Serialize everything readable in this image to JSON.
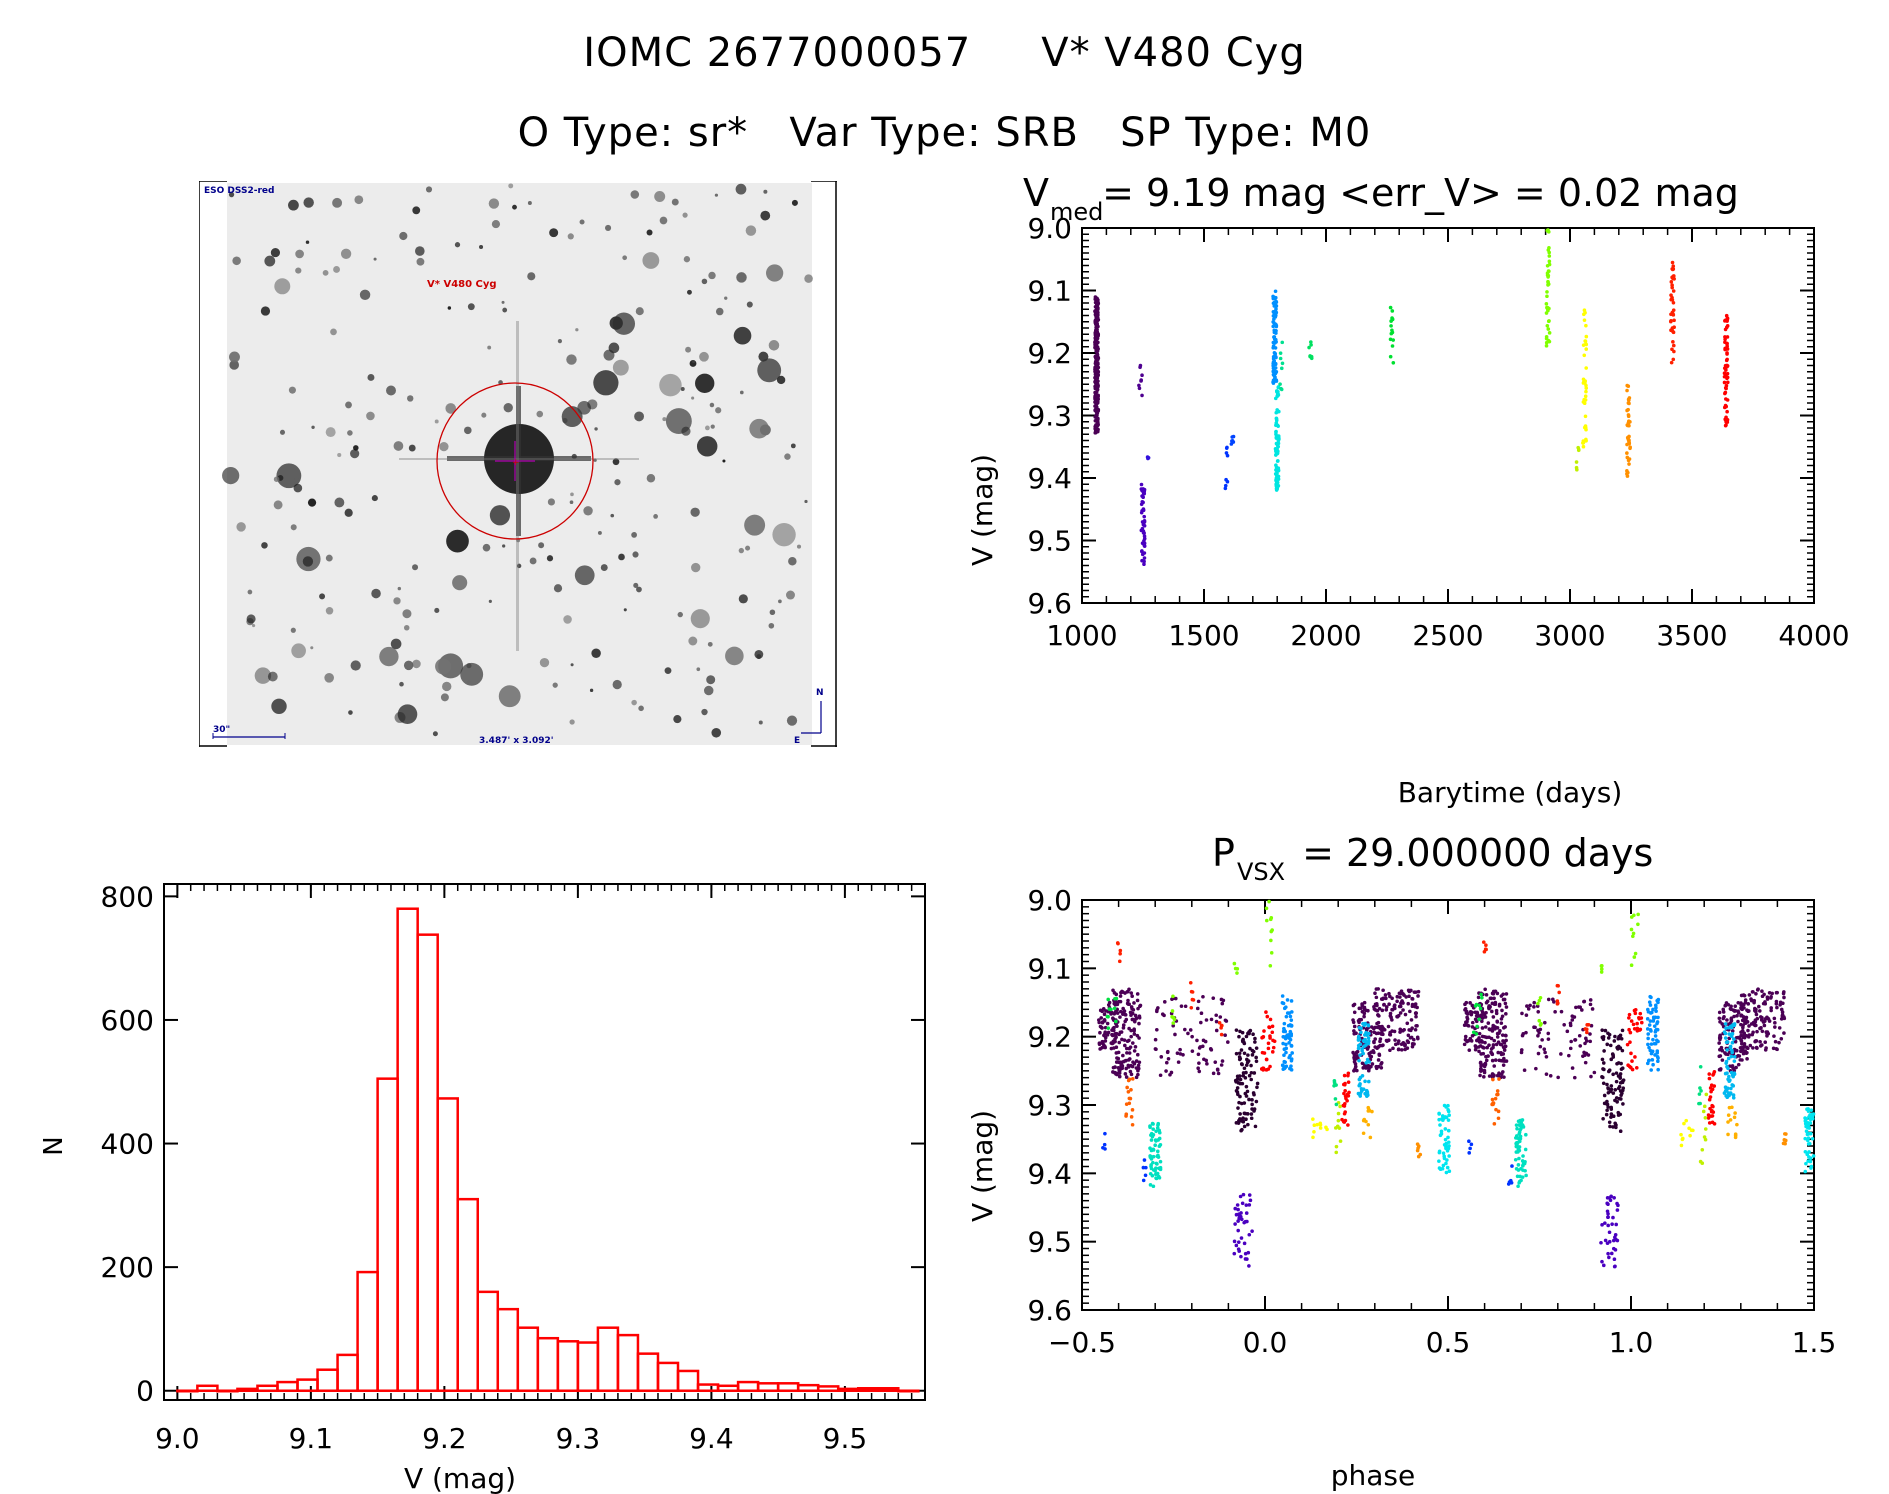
{
  "header": {
    "object_id": "IOMC 2677000057",
    "star_name": "V* V480 Cyg",
    "o_type": "O Type: sr*",
    "var_type": "Var Type: SRB",
    "sp_type": "SP Type: M0"
  },
  "finder_chart": {
    "survey_label": "ESO DSS2-red",
    "target_label": "V* V480 Cyg",
    "scale_label": "30\"",
    "fov_label": "3.487' x 3.092'",
    "north_label": "N",
    "east_label": "E",
    "colors": {
      "circle": "#cc0000",
      "crosshair": "#b000b0",
      "annotation": "#00008b",
      "target": "#cc0000"
    }
  },
  "chart_data": [
    {
      "id": "light_curve",
      "type": "scatter",
      "title_main": "V",
      "title_sub": "med",
      "title_rest": " = 9.19 mag <err_V> = 0.02 mag",
      "xlabel": "Barytime (days)",
      "ylabel": "V (mag)",
      "xlim": [
        1000,
        4000
      ],
      "ylim": [
        9.6,
        9.0
      ],
      "y_inverted": true,
      "xticks": [
        1000,
        1500,
        2000,
        2500,
        3000,
        3500,
        4000
      ],
      "xtick_labels": [
        "1000",
        "1500",
        "2000",
        "2500",
        "3000",
        "3500",
        "4000"
      ],
      "yticks": [
        9.0,
        9.1,
        9.2,
        9.3,
        9.4,
        9.5,
        9.6
      ],
      "ytick_labels": [
        "9.0",
        "9.1",
        "9.2",
        "9.3",
        "9.4",
        "9.5",
        "9.6"
      ],
      "segments": [
        {
          "x": 1060,
          "ymin": 9.11,
          "ymax": 9.33,
          "n": 260,
          "color": "#4b0055"
        },
        {
          "x": 1240,
          "ymin": 9.22,
          "ymax": 9.28,
          "n": 8,
          "color": "#4e0090"
        },
        {
          "x": 1250,
          "ymin": 9.41,
          "ymax": 9.54,
          "n": 50,
          "color": "#4a00c0"
        },
        {
          "x": 1275,
          "ymin": 9.36,
          "ymax": 9.37,
          "n": 3,
          "color": "#3311dd"
        },
        {
          "x": 1590,
          "ymin": 9.35,
          "ymax": 9.42,
          "n": 8,
          "color": "#0033ff"
        },
        {
          "x": 1615,
          "ymin": 9.33,
          "ymax": 9.35,
          "n": 6,
          "color": "#0044ff"
        },
        {
          "x": 1790,
          "ymin": 9.1,
          "ymax": 9.25,
          "n": 80,
          "color": "#0090ff"
        },
        {
          "x": 1800,
          "ymin": 9.25,
          "ymax": 9.42,
          "n": 80,
          "color": "#00e5e0"
        },
        {
          "x": 1815,
          "ymin": 9.18,
          "ymax": 9.26,
          "n": 8,
          "color": "#00e090"
        },
        {
          "x": 1935,
          "ymin": 9.18,
          "ymax": 9.21,
          "n": 7,
          "color": "#00e060"
        },
        {
          "x": 2270,
          "ymin": 9.12,
          "ymax": 9.22,
          "n": 14,
          "color": "#00e030"
        },
        {
          "x": 2910,
          "ymin": 9.0,
          "ymax": 9.19,
          "n": 40,
          "color": "#80ff00"
        },
        {
          "x": 3030,
          "ymin": 9.35,
          "ymax": 9.39,
          "n": 6,
          "color": "#c0f000"
        },
        {
          "x": 3060,
          "ymin": 9.13,
          "ymax": 9.35,
          "n": 40,
          "color": "#ffff00"
        },
        {
          "x": 3240,
          "ymin": 9.25,
          "ymax": 9.4,
          "n": 40,
          "color": "#ff9000"
        },
        {
          "x": 3420,
          "ymin": 9.05,
          "ymax": 9.22,
          "n": 40,
          "color": "#ff2000"
        },
        {
          "x": 3640,
          "ymin": 9.14,
          "ymax": 9.32,
          "n": 60,
          "color": "#ff0000"
        }
      ]
    },
    {
      "id": "phase_curve",
      "type": "scatter",
      "title_main": "P",
      "title_sub": "VSX",
      "title_rest": " = 29.000000 days",
      "period_days": 29.0,
      "xlabel": "phase",
      "ylabel": "V (mag)",
      "xlim": [
        -0.5,
        1.5
      ],
      "ylim": [
        9.6,
        9.0
      ],
      "y_inverted": true,
      "xticks": [
        -0.5,
        0.0,
        0.5,
        1.0,
        1.5
      ],
      "xtick_labels": [
        "−0.5",
        "0.0",
        "0.5",
        "1.0",
        "1.5"
      ],
      "yticks": [
        9.0,
        9.1,
        9.2,
        9.3,
        9.4,
        9.5,
        9.6
      ],
      "ytick_labels": [
        "9.0",
        "9.1",
        "9.2",
        "9.3",
        "9.4",
        "9.5",
        "9.6"
      ],
      "clusters": [
        {
          "phase": -0.38,
          "width": 0.08,
          "ymin": 9.13,
          "ymax": 9.26,
          "n": 160,
          "color": "#4b0055"
        },
        {
          "phase": -0.43,
          "width": 0.05,
          "ymin": 9.15,
          "ymax": 9.22,
          "n": 60,
          "color": "#4b0055"
        },
        {
          "phase": -0.2,
          "width": 0.2,
          "ymin": 9.14,
          "ymax": 9.26,
          "n": 80,
          "color": "#4b0055"
        },
        {
          "phase": -0.05,
          "width": 0.06,
          "ymin": 9.19,
          "ymax": 9.34,
          "n": 100,
          "color": "#2a0030"
        },
        {
          "phase": 0.28,
          "width": 0.08,
          "ymin": 9.15,
          "ymax": 9.25,
          "n": 120,
          "color": "#4b0055"
        },
        {
          "phase": 0.36,
          "width": 0.12,
          "ymin": 9.13,
          "ymax": 9.22,
          "n": 140,
          "color": "#4b0055"
        },
        {
          "phase": 0.06,
          "width": 0.03,
          "ymin": 9.14,
          "ymax": 9.25,
          "n": 60,
          "color": "#0090ff"
        },
        {
          "phase": 0.27,
          "width": 0.03,
          "ymin": 9.18,
          "ymax": 9.29,
          "n": 60,
          "color": "#00b8f0"
        },
        {
          "phase": 0.01,
          "width": 0.04,
          "ymin": 9.16,
          "ymax": 9.25,
          "n": 30,
          "color": "#ff0000"
        },
        {
          "phase": 0.22,
          "width": 0.02,
          "ymin": 9.25,
          "ymax": 9.33,
          "n": 25,
          "color": "#ff0000"
        },
        {
          "phase": -0.3,
          "width": 0.03,
          "ymin": 9.32,
          "ymax": 9.42,
          "n": 60,
          "color": "#00e0c0"
        },
        {
          "phase": 0.49,
          "width": 0.03,
          "ymin": 9.3,
          "ymax": 9.4,
          "n": 50,
          "color": "#00e5f0"
        },
        {
          "phase": -0.06,
          "width": 0.05,
          "ymin": 9.43,
          "ymax": 9.54,
          "n": 40,
          "color": "#4a00c0"
        },
        {
          "phase": -0.37,
          "width": 0.02,
          "ymin": 9.26,
          "ymax": 9.33,
          "n": 15,
          "color": "#ff6000"
        },
        {
          "phase": -0.4,
          "width": 0.01,
          "ymin": 9.06,
          "ymax": 9.09,
          "n": 5,
          "color": "#ff2000"
        },
        {
          "phase": 0.01,
          "width": 0.02,
          "ymin": 9.0,
          "ymax": 9.1,
          "n": 10,
          "color": "#80ff00"
        },
        {
          "phase": -0.08,
          "width": 0.01,
          "ymin": 9.09,
          "ymax": 9.11,
          "n": 4,
          "color": "#80ff00"
        },
        {
          "phase": 0.15,
          "width": 0.04,
          "ymin": 9.32,
          "ymax": 9.36,
          "n": 10,
          "color": "#ffff00"
        },
        {
          "phase": 0.28,
          "width": 0.03,
          "ymin": 9.3,
          "ymax": 9.35,
          "n": 12,
          "color": "#ffb000"
        },
        {
          "phase": 0.42,
          "width": 0.01,
          "ymin": 9.34,
          "ymax": 9.38,
          "n": 6,
          "color": "#ff9000"
        },
        {
          "phase": -0.44,
          "width": 0.01,
          "ymin": 9.34,
          "ymax": 9.37,
          "n": 4,
          "color": "#0033ff"
        },
        {
          "phase": -0.33,
          "width": 0.01,
          "ymin": 9.38,
          "ymax": 9.42,
          "n": 5,
          "color": "#0033ff"
        },
        {
          "phase": -0.42,
          "width": 0.03,
          "ymin": 9.13,
          "ymax": 9.2,
          "n": 10,
          "color": "#00e040"
        },
        {
          "phase": -0.25,
          "width": 0.01,
          "ymin": 9.14,
          "ymax": 9.19,
          "n": 6,
          "color": "#80ff00"
        },
        {
          "phase": -0.2,
          "width": 0.01,
          "ymin": 9.12,
          "ymax": 9.16,
          "n": 6,
          "color": "#ff2000"
        },
        {
          "phase": -0.12,
          "width": 0.01,
          "ymin": 9.17,
          "ymax": 9.2,
          "n": 5,
          "color": "#ff2000"
        },
        {
          "phase": 0.2,
          "width": 0.02,
          "ymin": 9.28,
          "ymax": 9.39,
          "n": 10,
          "color": "#c0f000"
        },
        {
          "phase": 0.19,
          "width": 0.01,
          "ymin": 9.24,
          "ymax": 9.3,
          "n": 6,
          "color": "#00e080"
        }
      ]
    },
    {
      "id": "histogram",
      "type": "bar",
      "xlabel": "V (mag)",
      "ylabel": "N",
      "xlim": [
        8.99,
        9.56
      ],
      "ylim": [
        -15,
        820
      ],
      "xticks": [
        9.0,
        9.1,
        9.2,
        9.3,
        9.4,
        9.5
      ],
      "xtick_labels": [
        "9.0",
        "9.1",
        "9.2",
        "9.3",
        "9.4",
        "9.5"
      ],
      "yticks": [
        0,
        200,
        400,
        600,
        800
      ],
      "ytick_labels": [
        "0",
        "200",
        "400",
        "600",
        "800"
      ],
      "bin_width": 0.015,
      "bin_start": 9.0,
      "values": [
        0,
        8,
        0,
        3,
        8,
        14,
        18,
        34,
        58,
        192,
        505,
        780,
        738,
        473,
        310,
        160,
        132,
        102,
        85,
        80,
        78,
        102,
        90,
        60,
        45,
        32,
        10,
        8,
        14,
        12,
        12,
        9,
        7,
        3,
        4,
        4,
        0
      ],
      "color": "#ff0000"
    }
  ]
}
